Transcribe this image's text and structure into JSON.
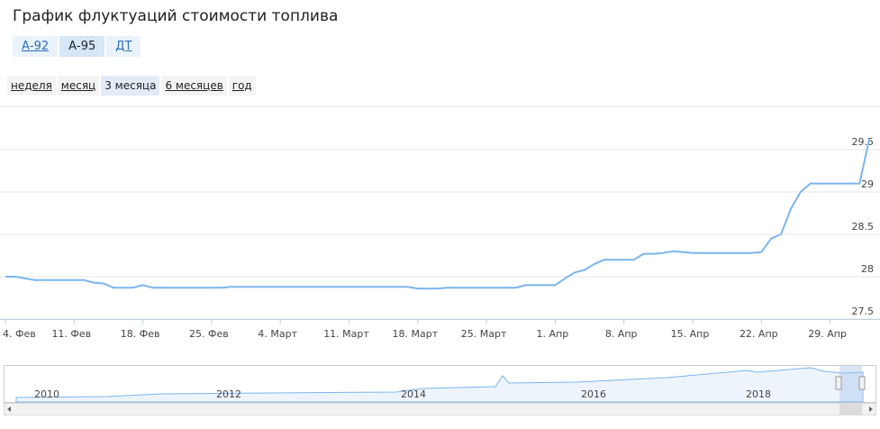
{
  "page_title": "График флуктуаций стоимости топлива",
  "fuel_tabs": {
    "items": [
      "А-92",
      "А-95",
      "ДТ"
    ],
    "selected": 1
  },
  "period_tabs": {
    "items": [
      "неделя",
      "месяц",
      "3 месяца",
      "6 месяцев",
      "год"
    ],
    "selected": 2
  },
  "chart_data": {
    "type": "line",
    "color": "#7cb5ec",
    "grid": true,
    "categories": [
      "4. Фев",
      null,
      null,
      null,
      null,
      null,
      null,
      "11. Фев",
      null,
      null,
      null,
      null,
      null,
      null,
      "18. Фев",
      null,
      null,
      null,
      null,
      null,
      null,
      "25. Фев",
      null,
      null,
      null,
      null,
      null,
      null,
      "4. Март",
      null,
      null,
      null,
      null,
      null,
      null,
      "11. Март",
      null,
      null,
      null,
      null,
      null,
      null,
      "18. Март",
      null,
      null,
      null,
      null,
      null,
      null,
      "25. Март",
      null,
      null,
      null,
      null,
      null,
      null,
      "1. Апр",
      null,
      null,
      null,
      null,
      null,
      null,
      "8. Апр",
      null,
      null,
      null,
      null,
      null,
      null,
      "15. Апр",
      null,
      null,
      null,
      null,
      null,
      null,
      "22. Апр",
      null,
      null,
      null,
      null,
      null,
      null,
      "29. Апр",
      null,
      null,
      null,
      null
    ],
    "values": [
      28.0,
      28.0,
      27.98,
      27.96,
      27.96,
      27.96,
      27.96,
      27.96,
      27.96,
      27.93,
      27.92,
      27.87,
      27.87,
      27.87,
      27.9,
      27.87,
      27.87,
      27.87,
      27.87,
      27.87,
      27.87,
      27.87,
      27.87,
      27.88,
      27.88,
      27.88,
      27.88,
      27.88,
      27.88,
      27.88,
      27.88,
      27.88,
      27.88,
      27.88,
      27.88,
      27.88,
      27.88,
      27.88,
      27.88,
      27.88,
      27.88,
      27.88,
      27.86,
      27.86,
      27.86,
      27.87,
      27.87,
      27.87,
      27.87,
      27.87,
      27.87,
      27.87,
      27.87,
      27.9,
      27.9,
      27.9,
      27.9,
      27.98,
      28.05,
      28.08,
      28.15,
      28.2,
      28.2,
      28.2,
      28.2,
      28.27,
      28.27,
      28.28,
      28.3,
      28.29,
      28.28,
      28.28,
      28.28,
      28.28,
      28.28,
      28.28,
      28.28,
      28.29,
      28.45,
      28.5,
      28.8,
      29.0,
      29.1,
      29.1,
      29.1,
      29.1,
      29.1,
      29.1,
      29.63
    ],
    "ylim": [
      27.5,
      30
    ],
    "yticks": [
      27.5,
      28,
      28.5,
      29,
      29.5
    ]
  },
  "navigator": {
    "labels": [
      "2010",
      "2012",
      "2014",
      "2016",
      "2018"
    ]
  }
}
